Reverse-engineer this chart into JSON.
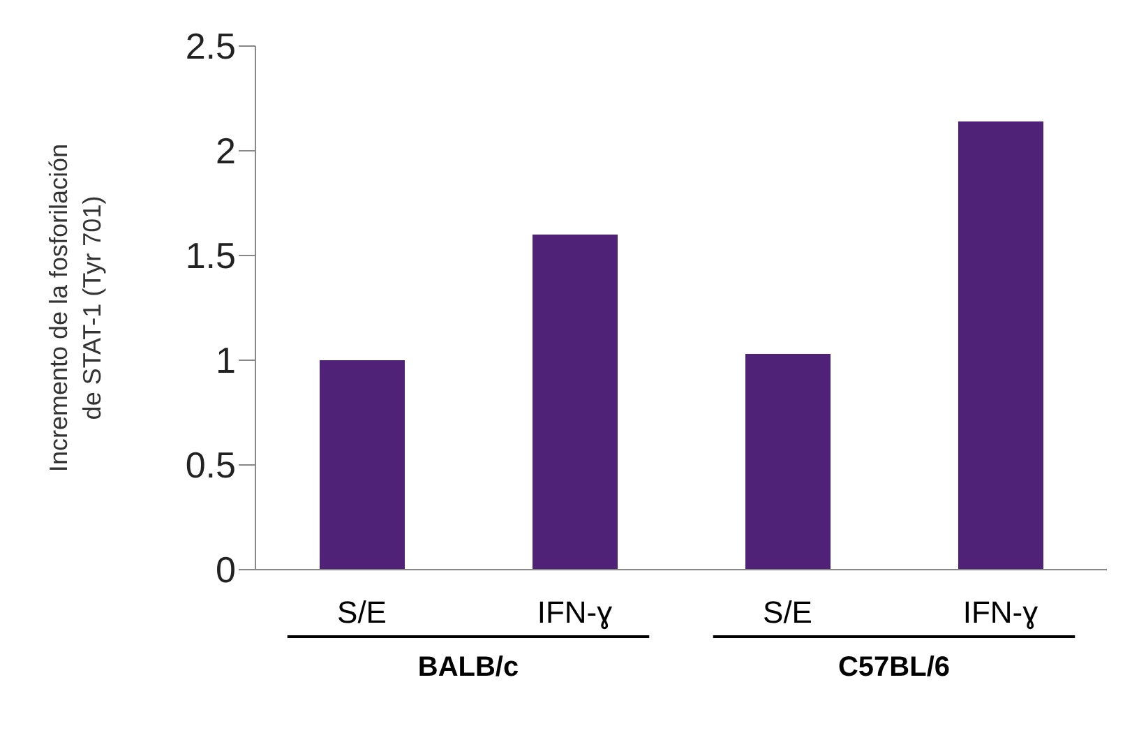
{
  "chart_data": {
    "type": "bar",
    "ylabel": "Incremento de la fosforilación de STAT-1 (Tyr 701)",
    "categories": [
      "S/E",
      "IFN-ɣ",
      "S/E",
      "IFN-ɣ"
    ],
    "values": [
      1.0,
      1.6,
      1.03,
      2.14
    ],
    "color": "#4f2278",
    "ylim": [
      0,
      2.5
    ],
    "yticks": [
      0,
      0.5,
      1,
      1.5,
      2,
      2.5
    ],
    "annotations": [
      "BALB/c",
      "C57BL/6"
    ]
  }
}
